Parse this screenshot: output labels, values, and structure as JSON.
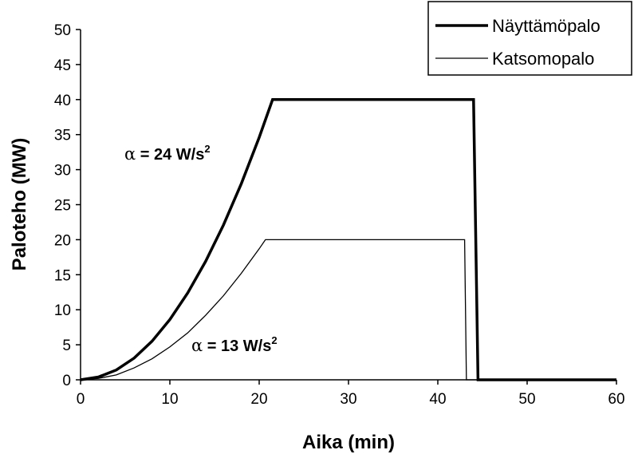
{
  "chart_data": {
    "type": "line",
    "xlabel": "Aika (min)",
    "ylabel": "Paloteho (MW)",
    "xlim": [
      0,
      60
    ],
    "ylim": [
      0,
      50
    ],
    "xticks": [
      "0",
      "10",
      "20",
      "30",
      "40",
      "50",
      "60"
    ],
    "yticks": [
      "0",
      "5",
      "10",
      "15",
      "20",
      "25",
      "30",
      "35",
      "40",
      "45",
      "50"
    ],
    "grid": false,
    "legend_position": "top-right",
    "series": [
      {
        "name": "Näyttämöpalo",
        "color": "#000000",
        "style": "thick",
        "x": [
          0,
          2,
          4,
          6,
          8,
          10,
          12,
          14,
          16,
          18,
          20,
          21.5,
          44,
          44.5,
          60
        ],
        "y": [
          0,
          0.4,
          1.4,
          3.1,
          5.5,
          8.6,
          12.4,
          16.9,
          22.1,
          28.0,
          34.6,
          40,
          40,
          0,
          0
        ]
      },
      {
        "name": "Katsomopalo",
        "color": "#000000",
        "style": "thin",
        "x": [
          0,
          2,
          4,
          6,
          8,
          10,
          12,
          14,
          16,
          18,
          20,
          20.7,
          21,
          43,
          43.2,
          60
        ],
        "y": [
          0,
          0.2,
          0.7,
          1.7,
          3.0,
          4.7,
          6.7,
          9.2,
          12.0,
          15.2,
          18.7,
          20,
          20,
          20,
          0,
          0
        ]
      }
    ],
    "annotations": [
      {
        "alpha": "α",
        "text": " = 24 W/s",
        "sup": "2"
      },
      {
        "alpha": "α",
        "text": " = 13 W/s",
        "sup": "2"
      }
    ]
  }
}
